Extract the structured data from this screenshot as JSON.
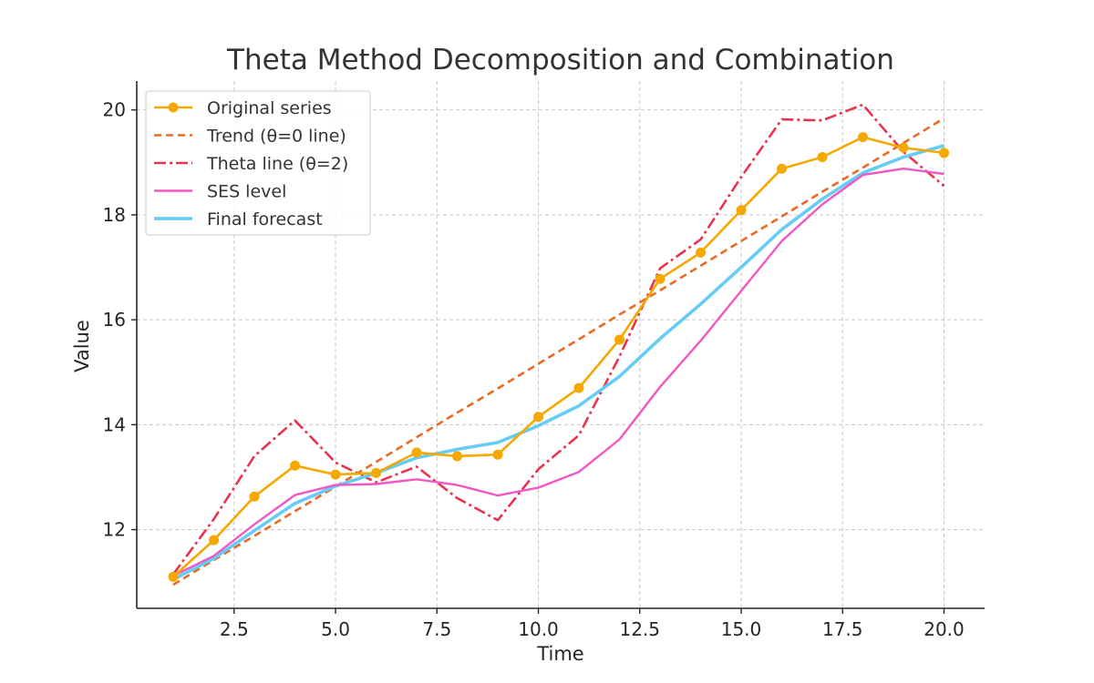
{
  "chart_data": {
    "type": "line",
    "title": "Theta Method Decomposition and Combination",
    "xlabel": "Time",
    "ylabel": "Value",
    "xlim": [
      0.1,
      21.0
    ],
    "ylim": [
      10.5,
      20.55
    ],
    "xticks": [
      2.5,
      5.0,
      7.5,
      10.0,
      12.5,
      15.0,
      17.5,
      20.0
    ],
    "xtick_labels": [
      "2.5",
      "5.0",
      "7.5",
      "10.0",
      "12.5",
      "15.0",
      "17.5",
      "20.0"
    ],
    "yticks": [
      12,
      14,
      16,
      18,
      20
    ],
    "ytick_labels": [
      "12",
      "14",
      "16",
      "18",
      "20"
    ],
    "grid": true,
    "legend_position": "top-left",
    "x": [
      1,
      2,
      3,
      4,
      5,
      6,
      7,
      8,
      9,
      10,
      11,
      12,
      13,
      14,
      15,
      16,
      17,
      18,
      19,
      20
    ],
    "series": [
      {
        "name": "Original series",
        "style": "solid-marker",
        "color": "#f5a800",
        "values": [
          11.1,
          11.8,
          12.63,
          13.22,
          13.05,
          13.08,
          13.47,
          13.4,
          13.43,
          14.15,
          14.7,
          15.62,
          16.78,
          17.28,
          18.09,
          18.88,
          19.1,
          19.48,
          19.28,
          19.18
        ]
      },
      {
        "name": "Trend (θ=0 line)",
        "style": "dashed",
        "color": "#ea6a24",
        "values": [
          10.95,
          11.42,
          11.88,
          12.35,
          12.82,
          13.29,
          13.76,
          14.23,
          14.69,
          15.16,
          15.63,
          16.1,
          16.56,
          17.03,
          17.5,
          17.97,
          18.44,
          18.9,
          19.37,
          19.84
        ]
      },
      {
        "name": "Theta line (θ=2)",
        "style": "dashdot",
        "color": "#e8334f",
        "values": [
          11.15,
          12.2,
          13.4,
          14.08,
          13.28,
          12.9,
          13.2,
          12.6,
          12.18,
          13.15,
          13.8,
          15.3,
          16.98,
          17.53,
          18.72,
          19.82,
          19.8,
          20.1,
          19.2,
          18.55
        ]
      },
      {
        "name": "SES level",
        "style": "solid",
        "color": "#f057c0",
        "values": [
          11.12,
          11.5,
          12.1,
          12.66,
          12.85,
          12.87,
          12.96,
          12.85,
          12.65,
          12.8,
          13.1,
          13.72,
          14.72,
          15.6,
          16.55,
          17.5,
          18.2,
          18.76,
          18.88,
          18.78
        ]
      },
      {
        "name": "Final forecast",
        "style": "solid-thick",
        "color": "#66ccf5",
        "values": [
          11.05,
          11.45,
          11.98,
          12.5,
          12.83,
          13.08,
          13.37,
          13.53,
          13.66,
          13.98,
          14.36,
          14.92,
          15.64,
          16.3,
          17.0,
          17.72,
          18.3,
          18.8,
          19.1,
          19.32
        ]
      }
    ]
  }
}
